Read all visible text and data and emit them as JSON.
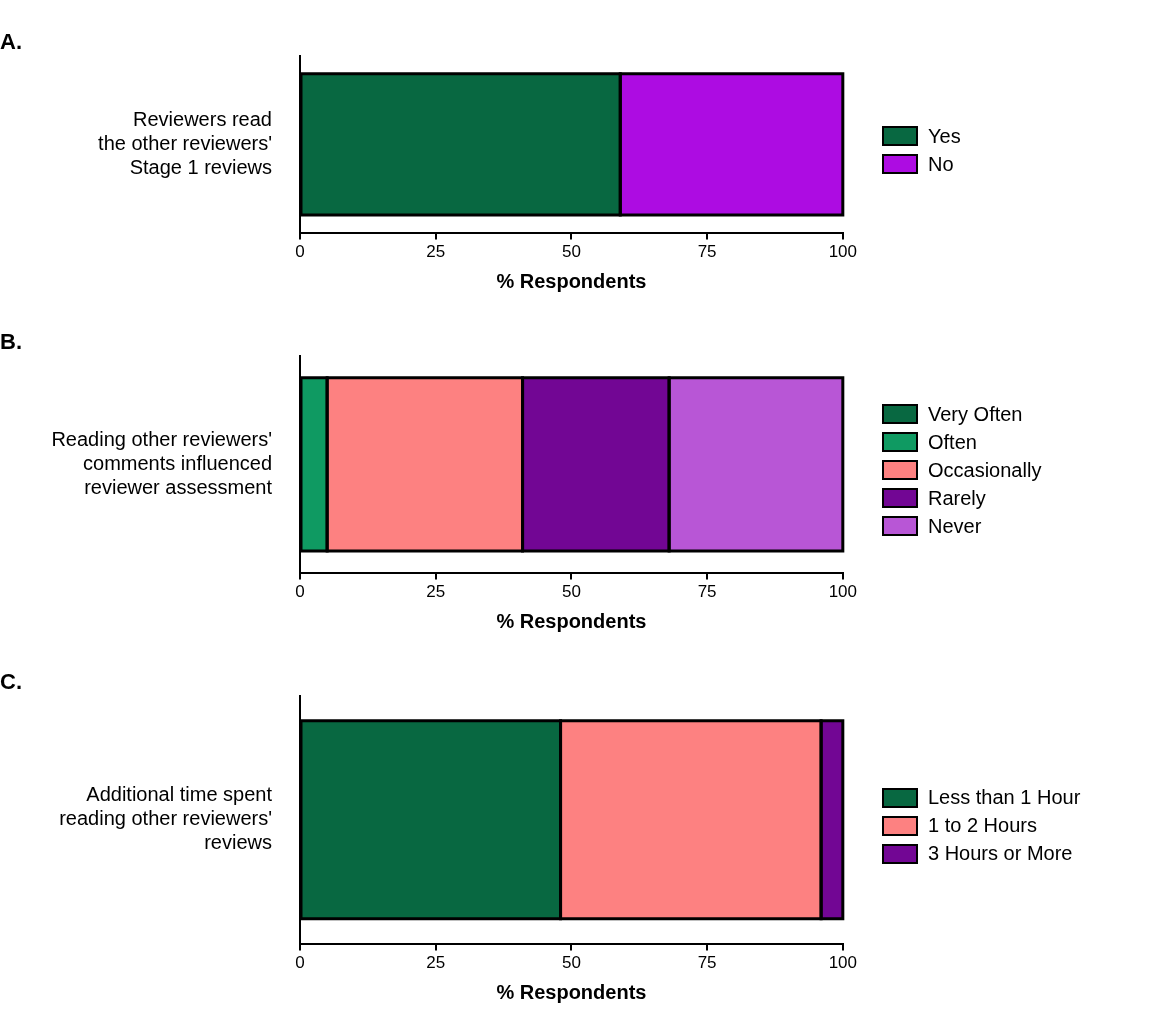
{
  "chart_data": [
    {
      "type": "bar",
      "title": "A.",
      "orientation": "horizontal",
      "stacked": true,
      "categories": [
        "Reviewers read\nthe other reviewers'\nStage 1 reviews"
      ],
      "xlabel": "% Respondents",
      "xlim": [
        0,
        100
      ],
      "xticks": [
        0,
        25,
        50,
        75,
        100
      ],
      "grid": false,
      "legend": "right",
      "series": [
        {
          "name": "Yes",
          "color": "#086841",
          "values": [
            59
          ]
        },
        {
          "name": "No",
          "color": "#ad0ce2",
          "values": [
            41
          ]
        }
      ]
    },
    {
      "type": "bar",
      "title": "B.",
      "orientation": "horizontal",
      "stacked": true,
      "categories": [
        "Reading other reviewers'\ncomments influenced\nreviewer assessment"
      ],
      "xlabel": "% Respondents",
      "xlim": [
        0,
        100
      ],
      "xticks": [
        0,
        25,
        50,
        75,
        100
      ],
      "grid": false,
      "legend": "right",
      "series": [
        {
          "name": "Very Often",
          "color": "#086841",
          "values": [
            0
          ]
        },
        {
          "name": "Often",
          "color": "#0f9a62",
          "values": [
            5
          ]
        },
        {
          "name": "Occasionally",
          "color": "#fd8181",
          "values": [
            36
          ]
        },
        {
          "name": "Rarely",
          "color": "#720694",
          "values": [
            27
          ]
        },
        {
          "name": "Never",
          "color": "#b856d6",
          "values": [
            32
          ]
        }
      ]
    },
    {
      "type": "bar",
      "title": "C.",
      "orientation": "horizontal",
      "stacked": true,
      "categories": [
        "Additional time spent\nreading other reviewers'\nreviews"
      ],
      "xlabel": "% Respondents",
      "xlim": [
        0,
        100
      ],
      "xticks": [
        0,
        25,
        50,
        75,
        100
      ],
      "grid": false,
      "legend": "right",
      "series": [
        {
          "name": "Less than 1 Hour",
          "color": "#086841",
          "values": [
            48
          ]
        },
        {
          "name": "1 to 2 Hours",
          "color": "#fd8181",
          "values": [
            48
          ]
        },
        {
          "name": "3 Hours or More",
          "color": "#720694",
          "values": [
            4
          ]
        }
      ]
    }
  ]
}
